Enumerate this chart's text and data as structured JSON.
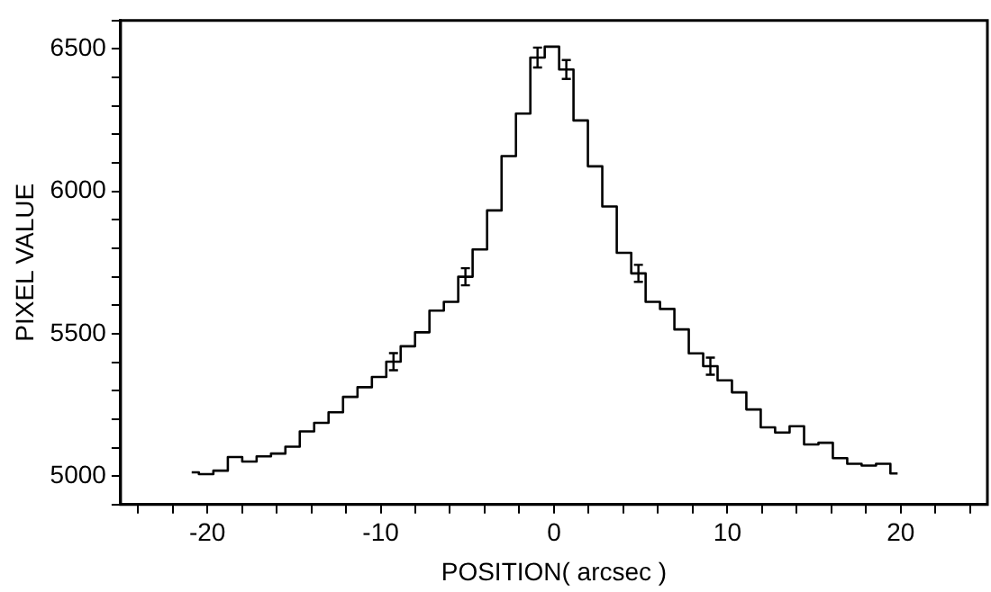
{
  "chart_data": {
    "type": "step",
    "xlabel": "POSITION( arcsec )",
    "ylabel": "PIXEL VALUE",
    "x": [
      -20.9,
      -20.07,
      -19.23,
      -18.4,
      -17.57,
      -16.74,
      -15.91,
      -15.08,
      -14.25,
      -13.42,
      -12.59,
      -11.75,
      -10.92,
      -10.09,
      -9.26,
      -8.43,
      -7.6,
      -6.77,
      -5.94,
      -5.11,
      -4.28,
      -3.44,
      -2.61,
      -1.78,
      -0.95,
      -0.12,
      0.71,
      1.54,
      2.37,
      3.2,
      4.04,
      4.87,
      5.7,
      6.53,
      7.36,
      8.19,
      9.02,
      9.85,
      10.68,
      11.51,
      12.34,
      13.17,
      14.01,
      14.84,
      15.67,
      16.5,
      17.33,
      18.16,
      18.99,
      19.82
    ],
    "values": [
      5013,
      5007,
      5019,
      5067,
      5051,
      5069,
      5079,
      5103,
      5157,
      5187,
      5224,
      5278,
      5312,
      5348,
      5402,
      5456,
      5505,
      5581,
      5612,
      5700,
      5796,
      5933,
      6124,
      6273,
      6470,
      6508,
      6428,
      6249,
      6088,
      5947,
      5784,
      5712,
      5612,
      5587,
      5515,
      5431,
      5386,
      5336,
      5294,
      5234,
      5171,
      5153,
      5175,
      5111,
      5117,
      5063,
      5043,
      5037,
      5043,
      5009
    ],
    "errors": [
      null,
      null,
      null,
      null,
      null,
      null,
      null,
      null,
      null,
      null,
      null,
      null,
      null,
      null,
      30,
      null,
      null,
      null,
      null,
      30,
      null,
      null,
      null,
      null,
      35,
      null,
      33,
      null,
      null,
      null,
      null,
      30,
      null,
      null,
      null,
      null,
      30,
      null,
      null,
      null,
      null,
      null,
      null,
      null,
      null,
      null,
      null,
      null,
      null,
      null
    ],
    "color": "#000000",
    "xlim": [
      -25,
      25
    ],
    "xticks": [
      {
        "value": -24,
        "label": null
      },
      {
        "value": -22,
        "label": null
      },
      -20,
      {
        "value": -18,
        "label": null
      },
      {
        "value": -16,
        "label": null
      },
      {
        "value": -14,
        "label": null
      },
      {
        "value": -12,
        "label": null
      },
      -10,
      {
        "value": -8,
        "label": null
      },
      {
        "value": -6,
        "label": null
      },
      {
        "value": -4,
        "label": null
      },
      {
        "value": -2,
        "label": null
      },
      0,
      {
        "value": 2,
        "label": null
      },
      {
        "value": 4,
        "label": null
      },
      {
        "value": 6,
        "label": null
      },
      {
        "value": 8,
        "label": null
      },
      10,
      {
        "value": 12,
        "label": null
      },
      {
        "value": 14,
        "label": null
      },
      {
        "value": 16,
        "label": null
      },
      {
        "value": 18,
        "label": null
      },
      20,
      {
        "value": 22,
        "label": null
      },
      {
        "value": 24,
        "label": null
      }
    ],
    "ylim": [
      4900,
      6600
    ],
    "yticks": [
      {
        "value": 4900,
        "label": null
      },
      5000,
      {
        "value": 5100,
        "label": null
      },
      {
        "value": 5200,
        "label": null
      },
      {
        "value": 5300,
        "label": null
      },
      {
        "value": 5400,
        "label": null
      },
      5500,
      {
        "value": 5600,
        "label": null
      },
      {
        "value": 5700,
        "label": null
      },
      {
        "value": 5800,
        "label": null
      },
      {
        "value": 5900,
        "label": null
      },
      6000,
      {
        "value": 6100,
        "label": null
      },
      {
        "value": 6200,
        "label": null
      },
      {
        "value": 6300,
        "label": null
      },
      {
        "value": 6400,
        "label": null
      },
      6500,
      {
        "value": 6600,
        "label": null
      }
    ],
    "grid": false,
    "legend": false,
    "marker": "none",
    "line_style": "solid"
  }
}
